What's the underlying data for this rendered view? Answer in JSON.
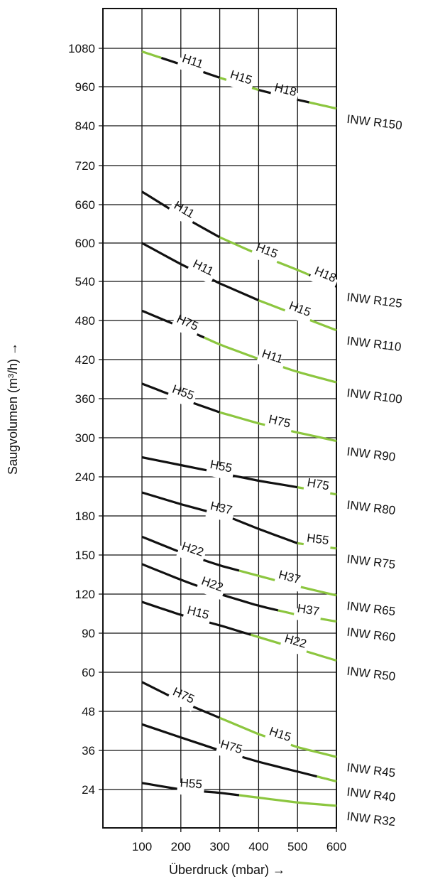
{
  "chart_data": {
    "type": "line",
    "xlabel": "Überdruck  (mbar) →",
    "ylabel": "Saugvolumen  (m³/h) →",
    "x_ticks": [
      "100",
      "200",
      "300",
      "400",
      "500",
      "600"
    ],
    "xlim": [
      0,
      600
    ],
    "y_ticks": [
      "24",
      "36",
      "48",
      "60",
      "90",
      "120",
      "150",
      "180",
      "240",
      "300",
      "360",
      "420",
      "480",
      "540",
      "600",
      "660",
      "720",
      "840",
      "960",
      "1080"
    ],
    "y_scale": "categorical-grid (non-linear)",
    "grid": true,
    "colors": {
      "black": "#111111",
      "green": "#8cc63f"
    },
    "series": [
      {
        "name": "INW R150",
        "points": [
          [
            100,
            1070
          ],
          [
            200,
            1030
          ],
          [
            300,
            988
          ],
          [
            400,
            950
          ],
          [
            500,
            920
          ],
          [
            600,
            893
          ]
        ],
        "segments": [
          {
            "x": [
              100,
              150
            ],
            "color": "green",
            "label": ""
          },
          {
            "x": [
              150,
              300
            ],
            "color": "black",
            "label": "H11"
          },
          {
            "x": [
              300,
              400
            ],
            "color": "green",
            "label": "H15"
          },
          {
            "x": [
              400,
              530
            ],
            "color": "black",
            "label": "H18"
          },
          {
            "x": [
              530,
              600
            ],
            "color": "green",
            "label": ""
          }
        ]
      },
      {
        "name": "INW R125",
        "points": [
          [
            100,
            680
          ],
          [
            200,
            643
          ],
          [
            300,
            609
          ],
          [
            400,
            582
          ],
          [
            500,
            558
          ],
          [
            600,
            532
          ]
        ],
        "segments": [
          {
            "x": [
              100,
              300
            ],
            "color": "black",
            "label": "H11"
          },
          {
            "x": [
              300,
              530
            ],
            "color": "green",
            "label": "H15"
          },
          {
            "x": [
              530,
              600
            ],
            "color": "black",
            "label": "H18"
          }
        ]
      },
      {
        "name": "INW R110",
        "points": [
          [
            100,
            600
          ],
          [
            200,
            567
          ],
          [
            300,
            537
          ],
          [
            400,
            511
          ],
          [
            500,
            488
          ],
          [
            600,
            465
          ]
        ],
        "segments": [
          {
            "x": [
              100,
              400
            ],
            "color": "black",
            "label": "H11"
          },
          {
            "x": [
              400,
              600
            ],
            "color": "green",
            "label": "H15"
          }
        ]
      },
      {
        "name": "INW R100",
        "points": [
          [
            100,
            495
          ],
          [
            200,
            470
          ],
          [
            300,
            443
          ],
          [
            400,
            421
          ],
          [
            500,
            401
          ],
          [
            600,
            385
          ]
        ],
        "segments": [
          {
            "x": [
              100,
              160
            ],
            "color": "black",
            "label": ""
          },
          {
            "x": [
              160,
              260
            ],
            "color": "black",
            "label": "H75"
          },
          {
            "x": [
              260,
              600
            ],
            "color": "green",
            "label": "H11"
          }
        ]
      },
      {
        "name": "INW R90",
        "points": [
          [
            100,
            383
          ],
          [
            200,
            360
          ],
          [
            300,
            339
          ],
          [
            400,
            322
          ],
          [
            500,
            308
          ],
          [
            600,
            295
          ]
        ],
        "segments": [
          {
            "x": [
              100,
              300
            ],
            "color": "black",
            "label": "H55"
          },
          {
            "x": [
              300,
              600
            ],
            "color": "green",
            "label": "H75"
          }
        ]
      },
      {
        "name": "INW R80",
        "points": [
          [
            100,
            270
          ],
          [
            200,
            258
          ],
          [
            300,
            246
          ],
          [
            400,
            234
          ],
          [
            500,
            224
          ],
          [
            600,
            213
          ]
        ],
        "segments": [
          {
            "x": [
              100,
              500
            ],
            "color": "black",
            "label": "H55"
          },
          {
            "x": [
              500,
              600
            ],
            "color": "green",
            "label": "H75"
          }
        ]
      },
      {
        "name": "INW R75",
        "points": [
          [
            100,
            216
          ],
          [
            200,
            198
          ],
          [
            300,
            182
          ],
          [
            400,
            170
          ],
          [
            500,
            159
          ],
          [
            600,
            155
          ]
        ],
        "segments": [
          {
            "x": [
              100,
              500
            ],
            "color": "black",
            "label": "H37"
          },
          {
            "x": [
              500,
              600
            ],
            "color": "green",
            "label": "H55"
          }
        ]
      },
      {
        "name": "INW R65",
        "points": [
          [
            100,
            164
          ],
          [
            200,
            152
          ],
          [
            300,
            142
          ],
          [
            400,
            134
          ],
          [
            500,
            126
          ],
          [
            600,
            119
          ]
        ],
        "segments": [
          {
            "x": [
              100,
              350
            ],
            "color": "black",
            "label": "H22"
          },
          {
            "x": [
              350,
              600
            ],
            "color": "green",
            "label": "H37"
          }
        ]
      },
      {
        "name": "INW R60",
        "points": [
          [
            100,
            143
          ],
          [
            200,
            131
          ],
          [
            300,
            120
          ],
          [
            400,
            111
          ],
          [
            500,
            104
          ],
          [
            600,
            99
          ]
        ],
        "segments": [
          {
            "x": [
              100,
              450
            ],
            "color": "black",
            "label": "H22"
          },
          {
            "x": [
              450,
              600
            ],
            "color": "green",
            "label": "H37"
          }
        ]
      },
      {
        "name": "INW R50",
        "points": [
          [
            100,
            114
          ],
          [
            200,
            104
          ],
          [
            300,
            96
          ],
          [
            400,
            87
          ],
          [
            500,
            78
          ],
          [
            600,
            69
          ]
        ],
        "segments": [
          {
            "x": [
              100,
              380
            ],
            "color": "black",
            "label": "H15"
          },
          {
            "x": [
              380,
              600
            ],
            "color": "green",
            "label": "H22"
          }
        ]
      },
      {
        "name": "INW R45",
        "points": [
          [
            100,
            57
          ],
          [
            200,
            51
          ],
          [
            300,
            46
          ],
          [
            400,
            41
          ],
          [
            500,
            37
          ],
          [
            600,
            34
          ]
        ],
        "segments": [
          {
            "x": [
              100,
              300
            ],
            "color": "black",
            "label": "H75"
          },
          {
            "x": [
              300,
              600
            ],
            "color": "green",
            "label": "H15"
          }
        ]
      },
      {
        "name": "INW R40",
        "points": [
          [
            100,
            44
          ],
          [
            200,
            40
          ],
          [
            300,
            36
          ],
          [
            400,
            32.5
          ],
          [
            500,
            29.5
          ],
          [
            600,
            26.5
          ]
        ],
        "segments": [
          {
            "x": [
              100,
              550
            ],
            "color": "black",
            "label": "H75"
          },
          {
            "x": [
              550,
              600
            ],
            "color": "green",
            "label": ""
          }
        ]
      },
      {
        "name": "INW R32",
        "points": [
          [
            100,
            26
          ],
          [
            200,
            24
          ],
          [
            300,
            23
          ],
          [
            400,
            21.5
          ],
          [
            500,
            20
          ],
          [
            600,
            19
          ]
        ],
        "segments": [
          {
            "x": [
              100,
              350
            ],
            "color": "black",
            "label": "H55"
          },
          {
            "x": [
              350,
              600
            ],
            "color": "green",
            "label": ""
          }
        ]
      }
    ]
  }
}
